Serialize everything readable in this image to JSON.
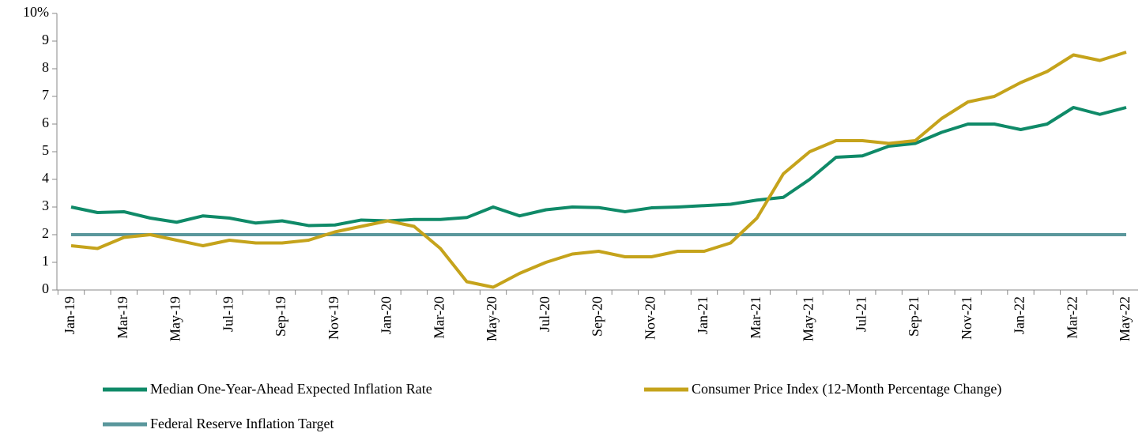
{
  "chart_data": {
    "type": "line",
    "categories": [
      "Jan-19",
      null,
      "Mar-19",
      null,
      "May-19",
      null,
      "Jul-19",
      null,
      "Sep-19",
      null,
      "Nov-19",
      null,
      "Jan-20",
      null,
      "Mar-20",
      null,
      "May-20",
      null,
      "Jul-20",
      null,
      "Sep-20",
      null,
      "Nov-20",
      null,
      "Jan-21",
      null,
      "Mar-21",
      null,
      "May-21",
      null,
      "Jul-21",
      null,
      "Sep-21",
      null,
      "Nov-21",
      null,
      "Jan-22",
      null,
      "Mar-22",
      null,
      "May-22"
    ],
    "series": [
      {
        "name": "Median One-Year-Ahead Expected Inflation Rate",
        "color": "#0f8a68",
        "values": [
          3.0,
          2.8,
          2.83,
          2.6,
          2.45,
          2.68,
          2.6,
          2.42,
          2.5,
          2.33,
          2.35,
          2.53,
          2.5,
          2.55,
          2.55,
          2.62,
          3.0,
          2.68,
          2.9,
          3.0,
          2.98,
          2.83,
          2.97,
          3.0,
          3.05,
          3.1,
          3.25,
          3.35,
          4.0,
          4.8,
          4.85,
          5.2,
          5.3,
          5.7,
          6.0,
          6.0,
          5.8,
          6.0,
          6.6,
          6.35,
          6.6
        ]
      },
      {
        "name": "Consumer Price Index (12-Month Percentage Change)",
        "color": "#c5a31b",
        "values": [
          1.6,
          1.5,
          1.9,
          2.0,
          1.8,
          1.6,
          1.8,
          1.7,
          1.7,
          1.8,
          2.1,
          2.3,
          2.5,
          2.3,
          1.5,
          0.3,
          0.1,
          0.6,
          1.0,
          1.3,
          1.4,
          1.2,
          1.2,
          1.4,
          1.4,
          1.7,
          2.6,
          4.2,
          5.0,
          5.4,
          5.4,
          5.3,
          5.4,
          6.2,
          6.8,
          7.0,
          7.5,
          7.9,
          8.5,
          8.3,
          8.6
        ]
      },
      {
        "name": "Federal Reserve Inflation Target",
        "color": "#5a979c",
        "values": [
          2,
          2,
          2,
          2,
          2,
          2,
          2,
          2,
          2,
          2,
          2,
          2,
          2,
          2,
          2,
          2,
          2,
          2,
          2,
          2,
          2,
          2,
          2,
          2,
          2,
          2,
          2,
          2,
          2,
          2,
          2,
          2,
          2,
          2,
          2,
          2,
          2,
          2,
          2,
          2,
          2
        ]
      }
    ],
    "ylim": [
      0,
      10
    ],
    "yticks": [
      0,
      1,
      2,
      3,
      4,
      5,
      6,
      7,
      8,
      9,
      {
        "value": 10,
        "label": "10%"
      }
    ],
    "grid": false
  }
}
